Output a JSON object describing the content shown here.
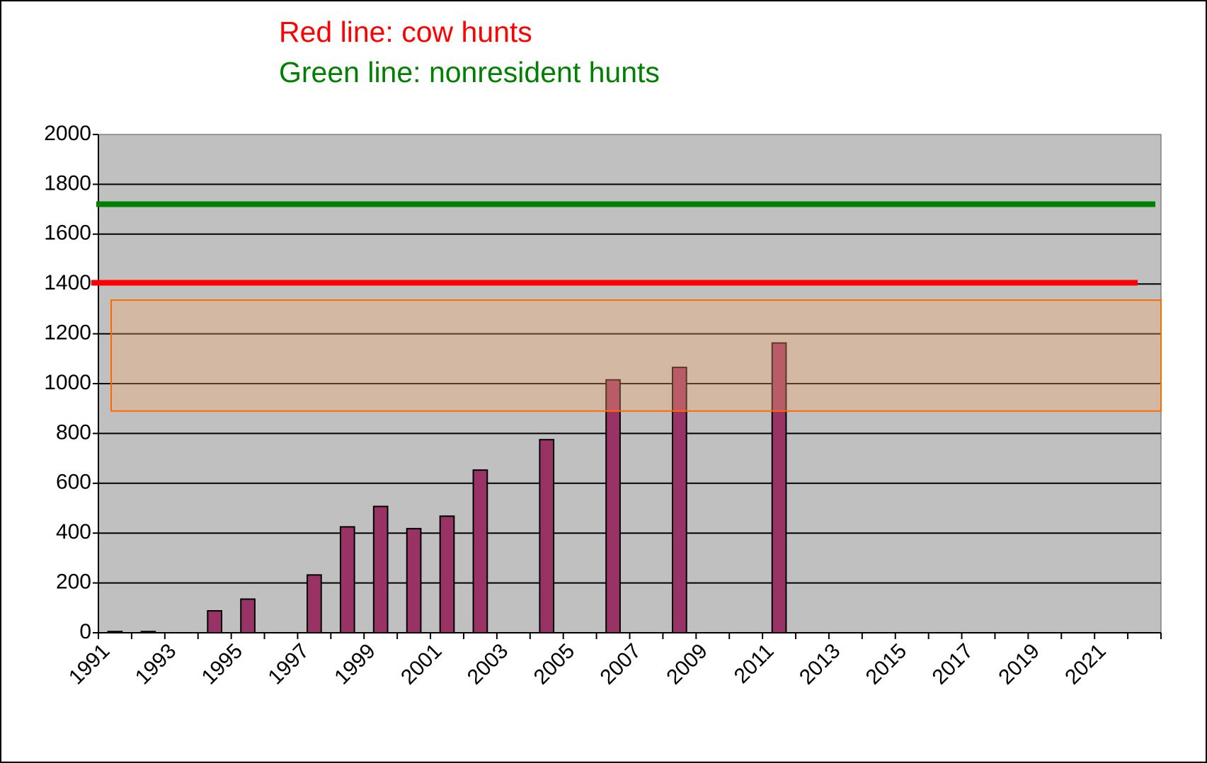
{
  "chart_data": {
    "type": "bar",
    "annotations": [
      {
        "text": "Red line:  cow hunts",
        "color": "#ff0000"
      },
      {
        "text": "Green line:  nonresident hunts",
        "color": "#008000"
      }
    ],
    "categories": [
      "1991",
      null,
      "1993",
      null,
      "1995",
      null,
      "1997",
      null,
      "1999",
      null,
      "2001",
      null,
      "2003",
      null,
      "2005",
      null,
      "2007",
      null,
      "2009",
      null,
      "2011",
      null,
      "2013",
      null,
      "2015",
      null,
      "2017",
      null,
      "2019",
      null,
      "2021",
      null
    ],
    "values": [
      5,
      5,
      null,
      88,
      135,
      null,
      232,
      425,
      507,
      418,
      468,
      653,
      null,
      775,
      null,
      1015,
      null,
      1065,
      null,
      null,
      1163,
      null,
      null,
      null,
      null,
      null,
      null,
      null,
      null,
      null,
      null,
      null
    ],
    "color": "#993366",
    "reference_lines": [
      {
        "value": 1405,
        "color": "#ff0000"
      },
      {
        "value": 1720,
        "color": "#008000"
      }
    ],
    "highlight_band": [
      890,
      1335
    ],
    "ylim": [
      0,
      2000
    ],
    "yticks": [
      0,
      200,
      400,
      600,
      800,
      1000,
      1200,
      1400,
      1600,
      1800,
      2000
    ],
    "grid": true
  }
}
